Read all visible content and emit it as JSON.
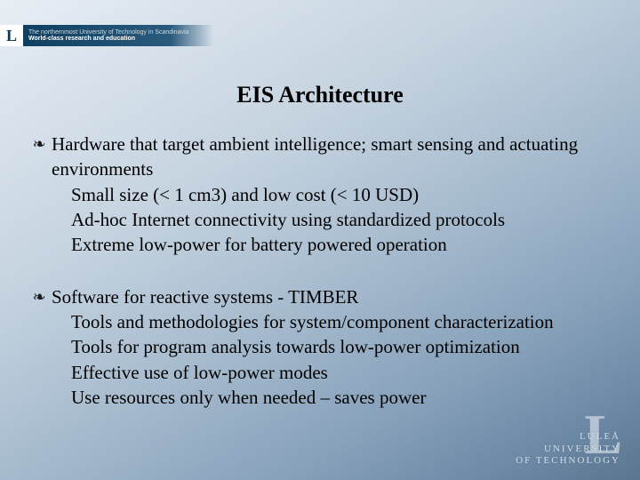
{
  "header": {
    "logo_letter": "L",
    "line1": "The northernmost University of Technology in Scandinavia",
    "line2": "World-class research and education"
  },
  "title": "EIS Architecture",
  "bullets": [
    {
      "main": "Hardware that target ambient intelligence; smart sensing and actuating environments",
      "subs": [
        "Small size (< 1 cm3) and low cost (< 10 USD)",
        "Ad-hoc Internet connectivity using standardized protocols",
        "Extreme low-power for battery powered operation"
      ]
    },
    {
      "main": "Software for reactive systems - TIMBER",
      "subs": [
        "Tools and methodologies for system/component characterization",
        "Tools for program analysis towards low-power optimization",
        "Effective use of low-power modes",
        "Use resources only when needed – saves power"
      ]
    }
  ],
  "footer": {
    "mark": "L",
    "line1": "LULEÅ",
    "line2": "UNIVERSITY",
    "line3": "OF TECHNOLOGY"
  },
  "styling": {
    "slide_width": 720,
    "slide_height": 540,
    "background_gradient": [
      "#e8eef4",
      "#d8e2ec",
      "#c5d3e0",
      "#a8bccf",
      "#88a2bb",
      "#6b88a5",
      "#5a7690"
    ],
    "title_fontsize": 26,
    "body_fontsize": 21,
    "text_color": "#000000",
    "font_family": "Times New Roman",
    "header_band_bg": "#0a3a5c",
    "header_text_color": "#ffffff",
    "footer_logo_color": "#d4dde6",
    "bullet_marker": "❧"
  }
}
